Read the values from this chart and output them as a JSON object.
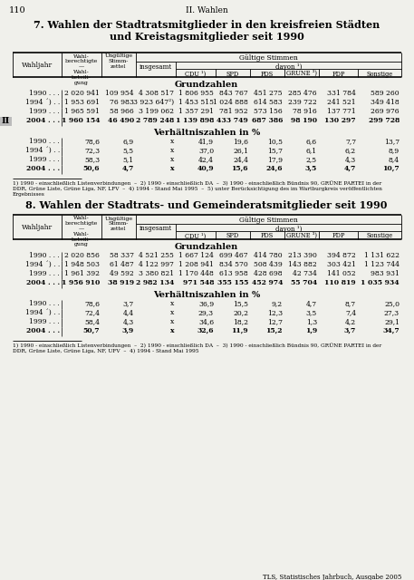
{
  "page_num": "110",
  "section": "II. Wahlen",
  "table1_title": "7. Wahlen der Stadtratsmitglieder in den kreisfreien Städten\nund Kreistagsmitglieder seit 1990",
  "table2_title": "8. Wahlen der Stadtrats- und Gemeinderatsmitglieder seit 1990",
  "header_wahljahr": "Wahljahr",
  "header_wahlber": "Wahl-\nberechtigte\n—\nWahl-\nbeteili-\ngung",
  "header_ungueltig": "Ungültige\nStimm-\nzettel",
  "header_insgesamt": "insgesamt",
  "header_gueltige": "Gültige Stimmen",
  "header_davon": "davon ¹)",
  "header_cols": [
    "CDU ¹)",
    "SPD",
    "PDS",
    "GRÜNE ³)",
    "FDP",
    "Sonstige"
  ],
  "grundzahlen_label": "Grundzahlen",
  "verhaeltnis_label": "Verhältniszahlen in %",
  "table1_grundzahlen": {
    "years": [
      "1990 . . .",
      "1994 ´) . .",
      "1999 . . .",
      "2004 . . ."
    ],
    "bold": [
      false,
      false,
      false,
      true
    ],
    "col1": [
      "2 020 941",
      "1 953 691",
      "1 965 591",
      "1 960 154"
    ],
    "col2": [
      "109 954",
      "76 983",
      "58 966",
      "46 490"
    ],
    "col3": [
      "4 308 517",
      "3 923 647²)",
      "3 199 062",
      "2 789 248"
    ],
    "col4": [
      "1 806 955",
      "1 453 515",
      "1 357 291",
      "1 139 898"
    ],
    "col5": [
      "843 767",
      "1 024 888",
      "781 952",
      "433 749"
    ],
    "col6": [
      "451 275",
      "614 583",
      "573 156",
      "687 386"
    ],
    "col7": [
      "285 476",
      "239 722",
      "78 916",
      "98 190"
    ],
    "col8": [
      "331 784",
      "241 521",
      "137 771",
      "130 297"
    ],
    "col9": [
      "589 260",
      "349 418",
      "269 976",
      "299 728"
    ]
  },
  "table1_verhaeltnis": {
    "years": [
      "1990 . . .",
      "1994 ´) . .",
      "1999 . . .",
      "2004 . . ."
    ],
    "bold": [
      false,
      false,
      false,
      true
    ],
    "col1": [
      "78,6",
      "72,3",
      "58,3",
      "50,6"
    ],
    "col2": [
      "6,9",
      "5,5",
      "5,1",
      "4,7"
    ],
    "col3": [
      "x",
      "x",
      "x",
      "x"
    ],
    "col4": [
      "41,9",
      "37,0",
      "42,4",
      "40,9"
    ],
    "col5": [
      "19,6",
      "26,1",
      "24,4",
      "15,6"
    ],
    "col6": [
      "10,5",
      "15,7",
      "17,9",
      "24,6"
    ],
    "col7": [
      "6,6",
      "6,1",
      "2,5",
      "3,5"
    ],
    "col8": [
      "7,7",
      "6,2",
      "4,3",
      "4,7"
    ],
    "col9": [
      "13,7",
      "8,9",
      "8,4",
      "10,7"
    ]
  },
  "table1_footnotes": "1) 1990 - einschließlich Listenverbindungen  –  2) 1990 - einschließlich DA  –  3) 1990 - einschließlich Bündnis 90, GRÜNE PARTEI in der\nDDR, Grüne Liste, Grüne Liga, NF, LFV  –  4) 1994 - Stand Mai 1995  –  5) unter Berücksichtigung des im Wartburgkreis veröffentlichten\nErgebnisses",
  "table2_grundzahlen": {
    "years": [
      "1990 . . .",
      "1994 ´) . .",
      "1999 . . .",
      "2004 . . ."
    ],
    "bold": [
      false,
      false,
      false,
      true
    ],
    "col1": [
      "2 020 856",
      "1 948 503",
      "1 961 392",
      "1 956 910"
    ],
    "col2": [
      "58 337",
      "61 487",
      "49 592",
      "38 919"
    ],
    "col3": [
      "4 521 255",
      "4 122 997",
      "3 380 821",
      "2 982 134"
    ],
    "col4": [
      "1 667 124",
      "1 208 941",
      "1 170 448",
      "971 548"
    ],
    "col5": [
      "699 467",
      "834 570",
      "613 958",
      "355 155"
    ],
    "col6": [
      "414 780",
      "508 439",
      "428 698",
      "452 974"
    ],
    "col7": [
      "213 390",
      "143 882",
      "42 734",
      "55 704"
    ],
    "col8": [
      "394 872",
      "303 421",
      "141 052",
      "110 819"
    ],
    "col9": [
      "1 131 622",
      "1 123 744",
      "983 931",
      "1 035 934"
    ]
  },
  "table2_verhaeltnis": {
    "years": [
      "1990 . . .",
      "1994 ´) . .",
      "1999 . . .",
      "2004 . . ."
    ],
    "bold": [
      false,
      false,
      false,
      true
    ],
    "col1": [
      "78,6",
      "72,4",
      "58,4",
      "50,7"
    ],
    "col2": [
      "3,7",
      "4,4",
      "4,3",
      "3,9"
    ],
    "col3": [
      "x",
      "x",
      "x",
      "x"
    ],
    "col4": [
      "36,9",
      "29,3",
      "34,6",
      "32,6"
    ],
    "col5": [
      "15,5",
      "20,2",
      "18,2",
      "11,9"
    ],
    "col6": [
      "9,2",
      "12,3",
      "12,7",
      "15,2"
    ],
    "col7": [
      "4,7",
      "3,5",
      "1,3",
      "1,9"
    ],
    "col8": [
      "8,7",
      "7,4",
      "4,2",
      "3,7"
    ],
    "col9": [
      "25,0",
      "27,3",
      "29,1",
      "34,7"
    ]
  },
  "table2_footnotes": "1) 1990 - einschließlich Listenverbindungen  –  2) 1990 - einschließlich DA  –  3) 1990 - einschließlich Bündnis 90, GRÜNE PARTEI in der\nDDR, Grüne Liste, Grüne Liga, NF, UFV  –  4) 1994 - Stand Mai 1995",
  "footer": "TLS, Statistisches Jahrbuch, Ausgabe 2005",
  "section_marker": "II",
  "bg_color": "#f0f0eb"
}
